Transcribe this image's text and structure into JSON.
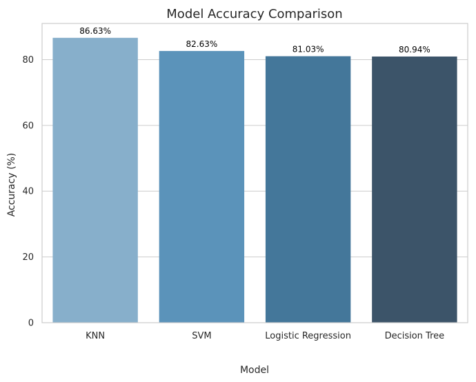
{
  "chart_data": {
    "type": "bar",
    "title": "Model Accuracy Comparison",
    "xlabel": "Model",
    "ylabel": "Accuracy (%)",
    "categories": [
      "KNN",
      "SVM",
      "Logistic Regression",
      "Decision Tree"
    ],
    "values": [
      86.63,
      82.63,
      81.03,
      80.94
    ],
    "value_labels": [
      "86.63%",
      "82.63%",
      "81.03%",
      "80.94%"
    ],
    "colors": [
      "#87AFCB",
      "#5B93BA",
      "#44779A",
      "#3C5469"
    ],
    "ylim": [
      0,
      91
    ],
    "yticks": [
      0,
      20,
      40,
      60,
      80
    ],
    "grid": "horizontal"
  }
}
